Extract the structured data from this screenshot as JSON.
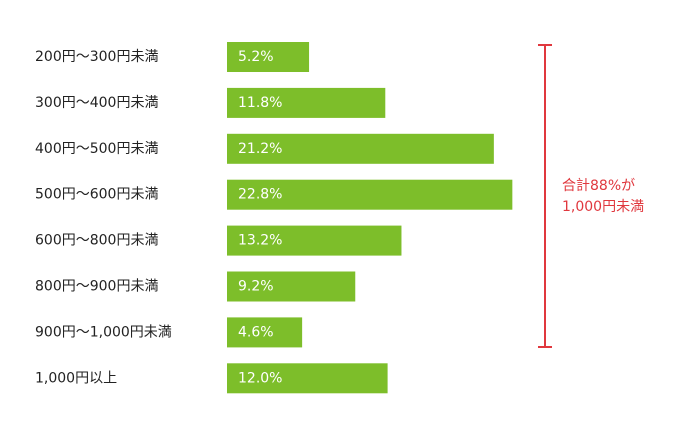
{
  "chart_data": {
    "type": "bar",
    "orientation": "horizontal",
    "categories": [
      "200円〜300円未満",
      "300円〜400円未満",
      "400円〜500円未満",
      "500円〜600円未満",
      "600円〜800円未満",
      "800円〜900円未満",
      "900円〜1,000円未満",
      "1,000円以上"
    ],
    "values": [
      5.2,
      11.8,
      21.2,
      22.8,
      13.2,
      9.2,
      4.6,
      12.0
    ],
    "value_labels": [
      "5.2%",
      "11.8%",
      "21.2%",
      "22.8%",
      "13.2%",
      "9.2%",
      "4.6%",
      "12.0%"
    ],
    "color": "#7dbe2a",
    "annotation": [
      "合計88%が",
      "1,000円未満"
    ],
    "annotation_color": "#e0383e"
  }
}
